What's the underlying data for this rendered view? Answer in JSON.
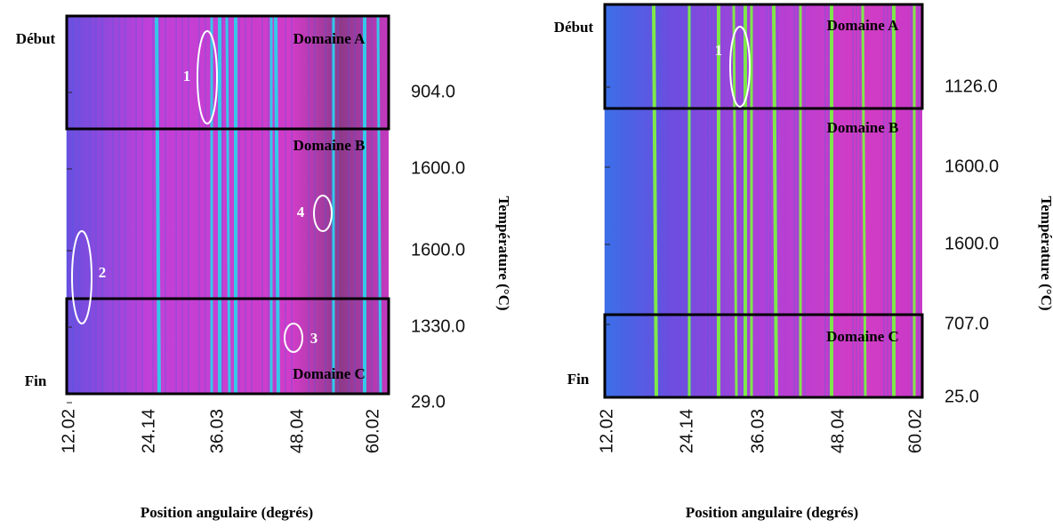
{
  "panels": [
    {
      "start_label": "Début",
      "end_label": "Fin",
      "domains": [
        "Domaine A",
        "Domaine B",
        "Domaine C"
      ],
      "annotations": [
        "1",
        "2",
        "3",
        "4"
      ],
      "x_ticks": [
        "12.02",
        "24.14",
        "36.03",
        "48.04",
        "60.02"
      ],
      "temperature_ticks": [
        "904.0",
        "1600.0",
        "1600.0",
        "1330.0",
        "29.0"
      ],
      "x_label": "Position angulaire (degrés)",
      "y_label": "Température (°C)"
    },
    {
      "start_label": "Début",
      "end_label": "Fin",
      "domains": [
        "Domaine A",
        "Domaine B",
        "Domaine C"
      ],
      "annotations": [
        "1"
      ],
      "x_ticks": [
        "12.02",
        "24.14",
        "36.03",
        "48.04",
        "60.02"
      ],
      "temperature_ticks": [
        "1126.0",
        "1600.0",
        "1600.0",
        "707.0",
        "25.0"
      ],
      "x_label": "Position angulaire (degrés)",
      "y_label": "Température (°C)"
    }
  ]
}
